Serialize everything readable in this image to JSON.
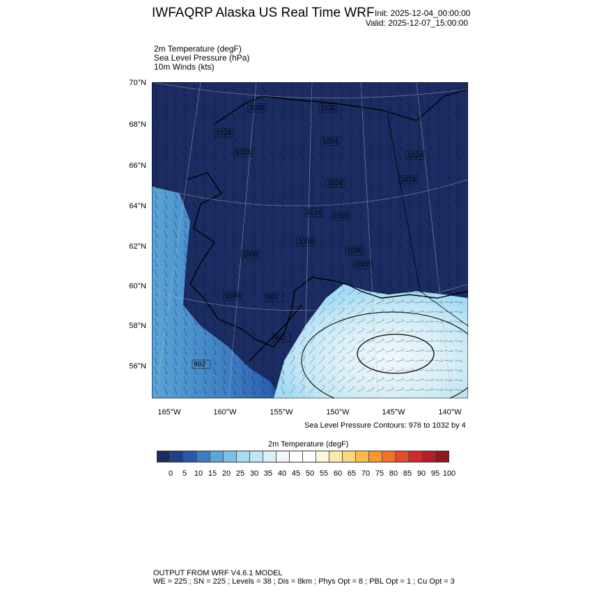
{
  "header": {
    "title": "IWFAQRP Alaska US Real Time WRF",
    "init": "Init: 2025-12-04_00:00:00",
    "valid": "Valid: 2025-12-07_15:00:00"
  },
  "fields": [
    "2m Temperature   (degF)",
    "Sea Level Pressure   (hPa)",
    "10m Winds   (kts)"
  ],
  "map": {
    "lat_labels": [
      "70°N",
      "68°N",
      "66°N",
      "64°N",
      "62°N",
      "60°N",
      "58°N",
      "56°N"
    ],
    "lon_labels": [
      "165°W",
      "160°W",
      "155°W",
      "150°W",
      "145°W",
      "140°W"
    ],
    "contour_labels": [
      "1032",
      "1032",
      "1024",
      "1024",
      "1024",
      "1024",
      "1024",
      "1016",
      "1016",
      "1016",
      "1008",
      "1008",
      "1000",
      "1000",
      "1000",
      "992",
      "992",
      "992"
    ],
    "colors": {
      "cold": "#1b2c62",
      "bering": "#3d7ec2",
      "gulf": "#a5dcf5",
      "gulf_core": "#f0f8fc"
    }
  },
  "slp_note": "Sea Level Pressure Contours: 976 to 1032 by 4",
  "colorbar": {
    "title": "2m Temperature  (degF)",
    "labels": [
      "0",
      "5",
      "10",
      "15",
      "20",
      "25",
      "30",
      "35",
      "40",
      "45",
      "50",
      "55",
      "60",
      "65",
      "70",
      "75",
      "80",
      "85",
      "90",
      "95",
      "100"
    ],
    "colors": [
      "#1b2c62",
      "#203f8a",
      "#2658ad",
      "#3d7ec2",
      "#5aa5d9",
      "#7cc0e8",
      "#a5dcf5",
      "#c0e6f5",
      "#dcf0f8",
      "#f0f8fc",
      "#ffffff",
      "#ffffff",
      "#fef8e0",
      "#fdeaa8",
      "#fdd57a",
      "#fdba4b",
      "#fa962f",
      "#f47228",
      "#e64a2c",
      "#d42828",
      "#b91c24",
      "#931619"
    ]
  },
  "footer": {
    "line1": "OUTPUT FROM WRF V4.6.1 MODEL",
    "line2": "WE = 225 ; SN = 225 ; Levels = 38 ; Dis = 8km ; Phys Opt = 8 ; PBL Opt = 1 ; Cu Opt = 3"
  }
}
